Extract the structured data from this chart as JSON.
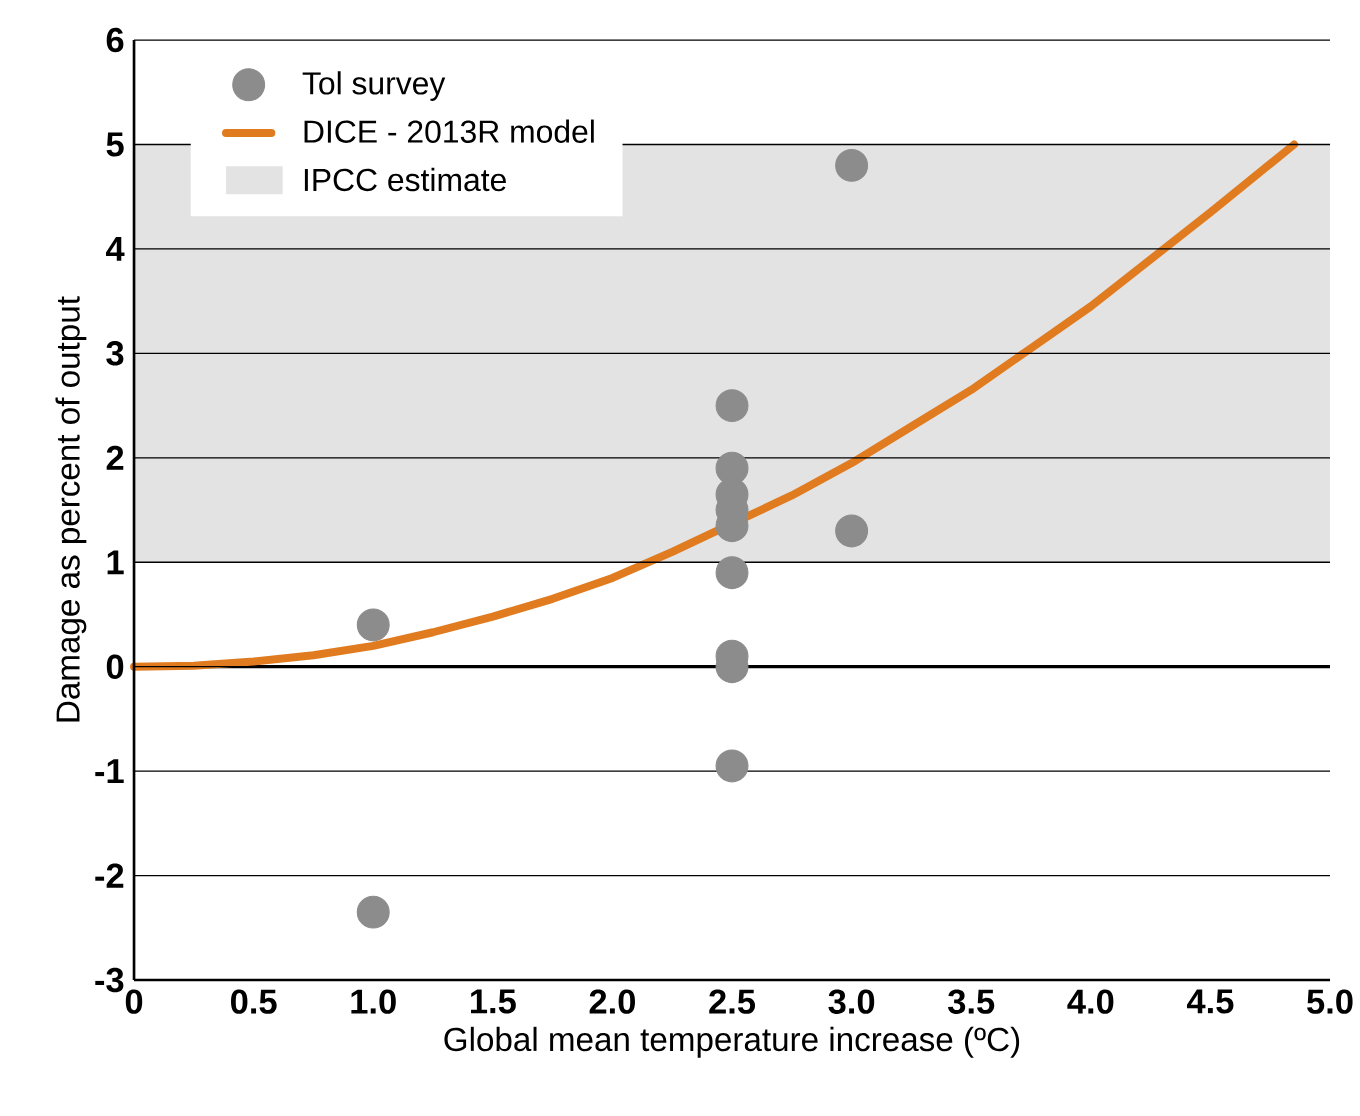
{
  "chart_data": {
    "type": "scatter",
    "xlabel": "Global mean temperature increase (ºC)",
    "ylabel": "Damage as percent of output",
    "xlim": [
      0,
      5
    ],
    "ylim": [
      -3,
      6
    ],
    "xticks": [
      0,
      0.5,
      {
        "value": 1,
        "label": "1.0"
      },
      1.5,
      {
        "value": 2,
        "label": "2.0"
      },
      2.5,
      {
        "value": 3,
        "label": "3.0"
      },
      3.5,
      {
        "value": 4,
        "label": "4.0"
      },
      4.5,
      {
        "value": 5,
        "label": "5.0"
      }
    ],
    "yticks": [
      -3,
      -2,
      -1,
      0,
      1,
      2,
      3,
      4,
      5,
      6
    ],
    "grid": "y",
    "legend": "top left",
    "series": [
      {
        "name": "Tol survey",
        "type": "scatter",
        "marker": "circle",
        "color": "#8c8c8c",
        "x": [
          1.0,
          1.0,
          2.5,
          2.5,
          2.5,
          2.5,
          2.5,
          2.5,
          2.5,
          2.5,
          2.5,
          3.0,
          3.0
        ],
        "values": [
          0.4,
          -2.35,
          2.5,
          1.9,
          1.65,
          1.5,
          1.35,
          0.9,
          0.1,
          0.0,
          -0.95,
          4.8,
          1.3
        ]
      },
      {
        "name": "DICE - 2013R model",
        "type": "line",
        "marker": "none",
        "color": "#e07b20",
        "x": [
          0,
          0.25,
          0.5,
          0.75,
          1.0,
          1.25,
          1.5,
          1.75,
          2.0,
          2.25,
          2.5,
          2.75,
          3.0,
          3.25,
          3.5,
          3.75,
          4.0,
          4.25,
          4.5,
          4.85
        ],
        "values": [
          0,
          0.01,
          0.05,
          0.11,
          0.2,
          0.33,
          0.48,
          0.65,
          0.85,
          1.1,
          1.37,
          1.64,
          1.95,
          2.3,
          2.65,
          3.05,
          3.45,
          3.9,
          4.35,
          5.0
        ]
      }
    ],
    "bands": [
      {
        "axis": "y",
        "from": 1,
        "to": 5,
        "label": "IPCC estimate",
        "color": "#e3e3e3"
      }
    ],
    "ref_lines": [
      {
        "axis": "y",
        "value": 0,
        "color": "#000000"
      }
    ]
  }
}
